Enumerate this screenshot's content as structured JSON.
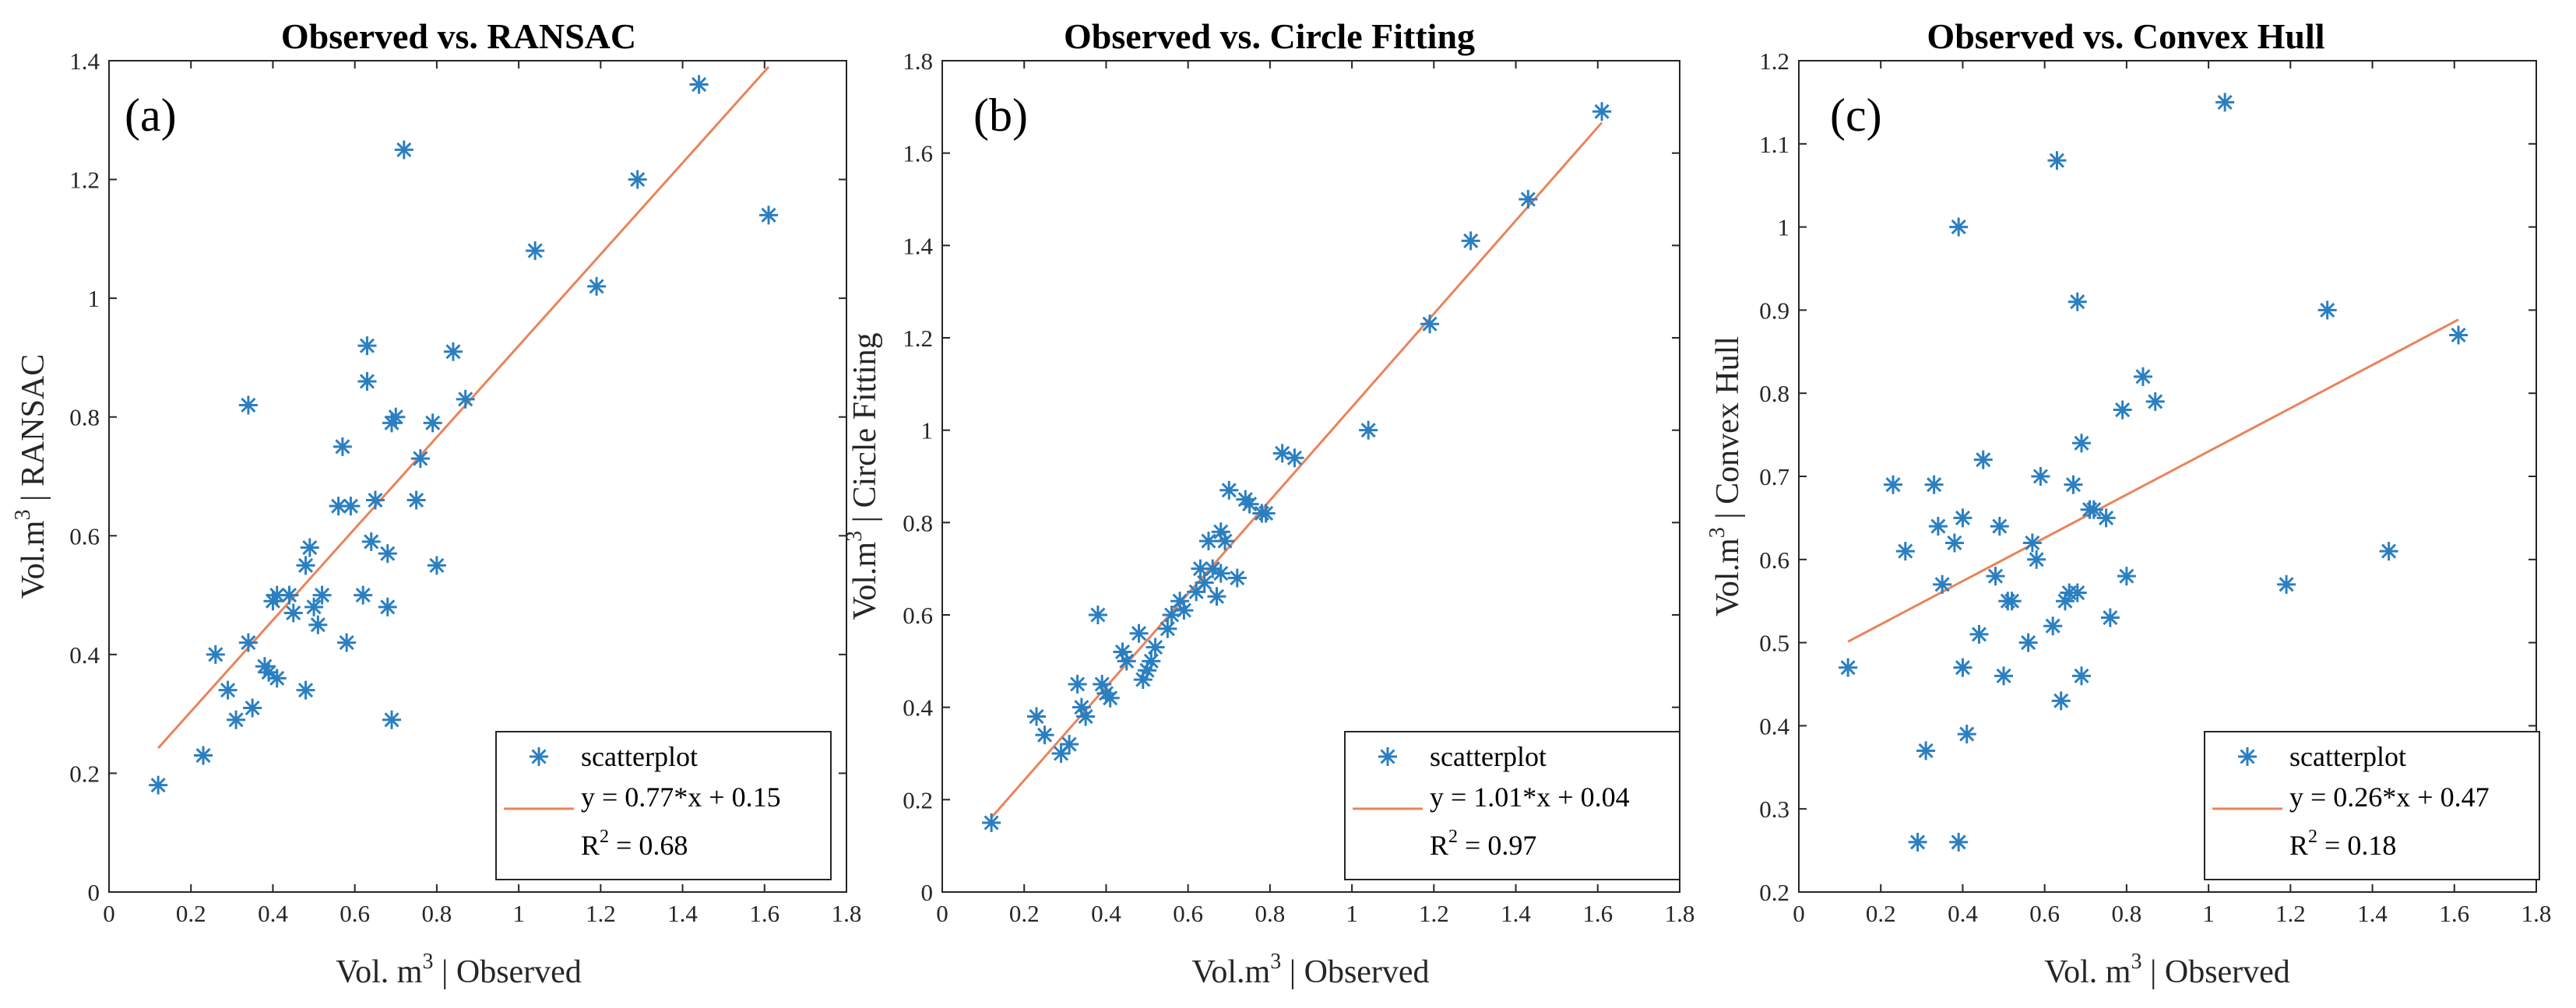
{
  "chart_data": [
    {
      "type": "scatter",
      "title": "Observed vs. RANSAC",
      "panel_label": "(a)",
      "xlabel": {
        "pre": "Vol. m",
        "sup": "3",
        "post": " | Observed"
      },
      "ylabel": {
        "pre": "Vol.m",
        "sup": "3",
        "post": " | RANSAC"
      },
      "xlim": [
        0,
        1.8
      ],
      "ylim": [
        0,
        1.4
      ],
      "xticks": [
        0,
        0.2,
        0.4,
        0.6,
        0.8,
        1,
        1.2,
        1.4,
        1.6,
        1.8
      ],
      "xtick_labels": [
        "0",
        "0.2",
        "0.4",
        "0.6",
        "0.8",
        "1",
        "1.2",
        "1.4",
        "1.6",
        "1.8"
      ],
      "yticks": [
        0,
        0.2,
        0.4,
        0.6,
        0.8,
        1,
        1.2,
        1.4
      ],
      "ytick_labels": [
        "0",
        "0.2",
        "0.4",
        "0.6",
        "0.8",
        "1",
        "1.2",
        "1.4"
      ],
      "x": [
        0.12,
        0.23,
        0.26,
        0.29,
        0.31,
        0.34,
        0.35,
        0.34,
        0.38,
        0.39,
        0.4,
        0.41,
        0.41,
        0.44,
        0.45,
        0.48,
        0.48,
        0.49,
        0.5,
        0.51,
        0.52,
        0.56,
        0.57,
        0.58,
        0.59,
        0.62,
        0.63,
        0.63,
        0.64,
        0.65,
        0.68,
        0.68,
        0.69,
        0.69,
        0.7,
        0.72,
        0.75,
        0.76,
        0.79,
        0.8,
        0.84,
        0.87,
        1.04,
        1.19,
        1.29,
        1.44,
        1.61
      ],
      "y": [
        0.18,
        0.23,
        0.4,
        0.34,
        0.29,
        0.82,
        0.31,
        0.42,
        0.38,
        0.37,
        0.49,
        0.5,
        0.36,
        0.5,
        0.47,
        0.55,
        0.34,
        0.58,
        0.48,
        0.45,
        0.5,
        0.65,
        0.75,
        0.42,
        0.65,
        0.5,
        0.92,
        0.86,
        0.59,
        0.66,
        0.57,
        0.48,
        0.79,
        0.29,
        0.8,
        1.25,
        0.66,
        0.73,
        0.79,
        0.55,
        0.91,
        0.83,
        1.08,
        1.02,
        1.2,
        1.36,
        1.14
      ],
      "fit": {
        "slope": 0.77,
        "intercept": 0.15,
        "x_range": [
          0.12,
          1.61
        ]
      },
      "legend": {
        "placement": "lower-right",
        "series_name": "scatterplot",
        "equation": "y = 0.77*x + 0.15",
        "r2": {
          "pre": "R",
          "sup": "2",
          "post": " = 0.68"
        }
      },
      "colors": {
        "marker": "#2a7fc1",
        "fit_line": "#e9845a"
      }
    },
    {
      "type": "scatter",
      "title": "Observed vs. Circle Fitting",
      "panel_label": "(b)",
      "xlabel": {
        "pre": "Vol.m",
        "sup": "3",
        "post": " | Observed"
      },
      "ylabel": {
        "pre": "Vol.m",
        "sup": "3",
        "post": " | Circle Fitting"
      },
      "xlim": [
        0,
        1.8
      ],
      "ylim": [
        0,
        1.8
      ],
      "xticks": [
        0,
        0.2,
        0.4,
        0.6,
        0.8,
        1,
        1.2,
        1.4,
        1.6,
        1.8
      ],
      "xtick_labels": [
        "0",
        "0.2",
        "0.4",
        "0.6",
        "0.8",
        "1",
        "1.2",
        "1.4",
        "1.6",
        "1.8"
      ],
      "yticks": [
        0,
        0.2,
        0.4,
        0.6,
        0.8,
        1,
        1.2,
        1.4,
        1.6,
        1.8
      ],
      "ytick_labels": [
        "0",
        "0.2",
        "0.4",
        "0.6",
        "0.8",
        "1",
        "1.2",
        "1.4",
        "1.6",
        "1.8"
      ],
      "x": [
        0.12,
        0.23,
        0.25,
        0.29,
        0.31,
        0.33,
        0.34,
        0.35,
        0.38,
        0.39,
        0.4,
        0.41,
        0.44,
        0.45,
        0.48,
        0.49,
        0.5,
        0.51,
        0.52,
        0.55,
        0.56,
        0.58,
        0.59,
        0.62,
        0.63,
        0.64,
        0.65,
        0.66,
        0.67,
        0.68,
        0.68,
        0.69,
        0.7,
        0.72,
        0.74,
        0.75,
        0.78,
        0.79,
        0.83,
        0.86,
        1.04,
        1.19,
        1.29,
        1.43,
        1.61
      ],
      "y": [
        0.15,
        0.38,
        0.34,
        0.3,
        0.32,
        0.45,
        0.4,
        0.38,
        0.6,
        0.45,
        0.43,
        0.42,
        0.52,
        0.5,
        0.56,
        0.46,
        0.48,
        0.5,
        0.53,
        0.57,
        0.6,
        0.63,
        0.61,
        0.65,
        0.7,
        0.67,
        0.76,
        0.7,
        0.64,
        0.78,
        0.69,
        0.76,
        0.87,
        0.68,
        0.85,
        0.84,
        0.82,
        0.82,
        0.95,
        0.94,
        1.0,
        1.23,
        1.41,
        1.5,
        1.69
      ],
      "fit": {
        "slope": 1.01,
        "intercept": 0.04,
        "x_range": [
          0.12,
          1.61
        ]
      },
      "legend": {
        "placement": "lower-right",
        "series_name": "scatterplot",
        "equation": "y = 1.01*x + 0.04",
        "r2": {
          "pre": "R",
          "sup": "2",
          "post": " = 0.97"
        }
      },
      "colors": {
        "marker": "#2a7fc1",
        "fit_line": "#e9845a"
      }
    },
    {
      "type": "scatter",
      "title": "Observed vs. Convex Hull",
      "panel_label": "(c)",
      "xlabel": {
        "pre": "Vol. m",
        "sup": "3",
        "post": " | Observed"
      },
      "ylabel": {
        "pre": "Vol.m",
        "sup": "3",
        "post": " | Convex Hull"
      },
      "xlim": [
        0,
        1.8
      ],
      "ylim": [
        0.2,
        1.2
      ],
      "xticks": [
        0,
        0.2,
        0.4,
        0.6,
        0.8,
        1,
        1.2,
        1.4,
        1.6,
        1.8
      ],
      "xtick_labels": [
        "0",
        "0.2",
        "0.4",
        "0.6",
        "0.8",
        "1",
        "1.2",
        "1.4",
        "1.6",
        "1.8"
      ],
      "yticks": [
        0.2,
        0.3,
        0.4,
        0.5,
        0.6,
        0.7,
        0.8,
        0.9,
        1,
        1.1,
        1.2
      ],
      "ytick_labels": [
        "0.2",
        "0.3",
        "0.4",
        "0.5",
        "0.6",
        "0.7",
        "0.8",
        "0.9",
        "1",
        "1.1",
        "1.2"
      ],
      "x": [
        0.12,
        0.23,
        0.26,
        0.29,
        0.31,
        0.33,
        0.34,
        0.35,
        0.38,
        0.39,
        0.39,
        0.4,
        0.4,
        0.41,
        0.44,
        0.45,
        0.48,
        0.49,
        0.5,
        0.51,
        0.52,
        0.56,
        0.57,
        0.58,
        0.59,
        0.62,
        0.63,
        0.64,
        0.65,
        0.66,
        0.67,
        0.68,
        0.68,
        0.69,
        0.69,
        0.71,
        0.72,
        0.75,
        0.76,
        0.79,
        0.8,
        0.84,
        0.87,
        1.04,
        1.19,
        1.29,
        1.44,
        1.61
      ],
      "y": [
        0.47,
        0.69,
        0.61,
        0.26,
        0.37,
        0.69,
        0.64,
        0.57,
        0.62,
        1.0,
        0.26,
        0.65,
        0.47,
        0.39,
        0.51,
        0.72,
        0.58,
        0.64,
        0.46,
        0.55,
        0.55,
        0.5,
        0.62,
        0.6,
        0.7,
        0.52,
        1.08,
        0.43,
        0.55,
        0.56,
        0.69,
        0.56,
        0.91,
        0.74,
        0.46,
        0.66,
        0.66,
        0.65,
        0.53,
        0.78,
        0.58,
        0.82,
        0.79,
        1.15,
        0.57,
        0.9,
        0.61,
        0.87
      ],
      "fit": {
        "slope": 0.26,
        "intercept": 0.47,
        "x_range": [
          0.12,
          1.61
        ]
      },
      "legend": {
        "placement": "lower-right",
        "series_name": "scatterplot",
        "equation": "y = 0.26*x + 0.47",
        "r2": {
          "pre": "R",
          "sup": "2",
          "post": " = 0.18"
        }
      },
      "colors": {
        "marker": "#2a7fc1",
        "fit_line": "#e9845a"
      }
    }
  ]
}
